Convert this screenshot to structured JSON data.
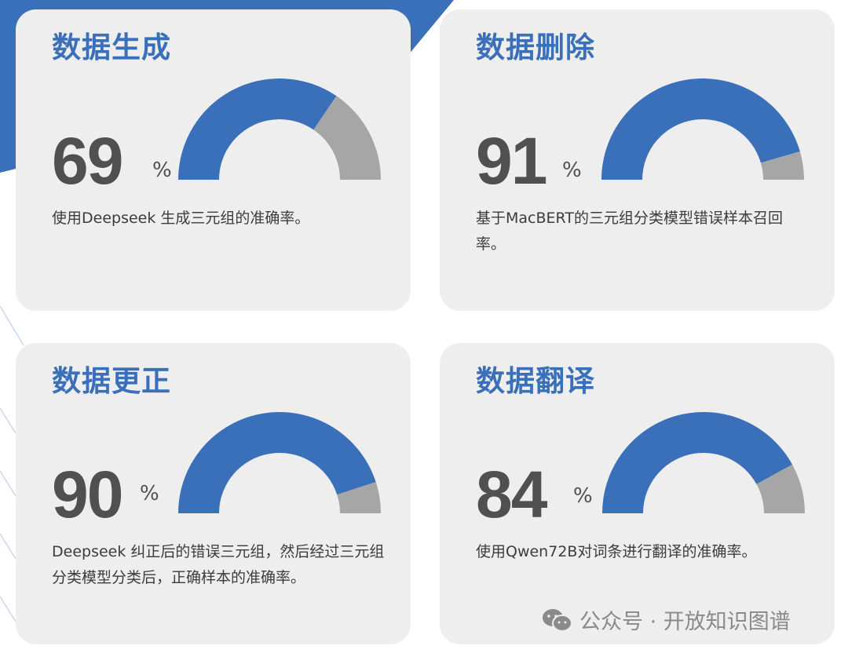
{
  "colors": {
    "accent": "#3a6fba",
    "remainder": "#a6a6a6",
    "card": "#eeeeee",
    "number": "#505050"
  },
  "cards": [
    {
      "title": "数据生成",
      "value": "69",
      "unit": "%",
      "description": "使用Deepseek 生成三元组的准确率。"
    },
    {
      "title": "数据删除",
      "value": "91",
      "unit": "%",
      "description": "基于MacBERT的三元组分类模型错误样本召回率。"
    },
    {
      "title": "数据更正",
      "value": "90",
      "unit": "%",
      "description": "Deepseek 纠正后的错误三元组，然后经过三元组分类模型分类后，正确样本的准确率。"
    },
    {
      "title": "数据翻译",
      "value": "84",
      "unit": "%",
      "description": "使用Qwen72B对词条进行翻译的准确率。"
    }
  ],
  "chart_data": [
    {
      "type": "gauge",
      "title": "数据生成",
      "value": 69,
      "max": 100
    },
    {
      "type": "gauge",
      "title": "数据删除",
      "value": 91,
      "max": 100
    },
    {
      "type": "gauge",
      "title": "数据更正",
      "value": 90,
      "max": 100
    },
    {
      "type": "gauge",
      "title": "数据翻译",
      "value": 84,
      "max": 100
    }
  ],
  "watermark": {
    "icon": "wechat-icon",
    "text": "公众号 · 开放知识图谱"
  }
}
